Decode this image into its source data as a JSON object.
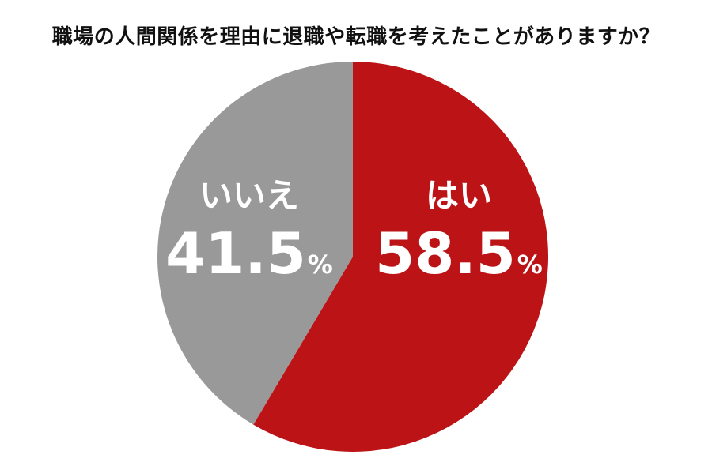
{
  "chart_data": {
    "type": "pie",
    "title": "職場の人間関係を理由に退職や転職を考えたことがありますか？",
    "slices": [
      {
        "label": "はい",
        "value": 58.5,
        "color": "#bb1316"
      },
      {
        "label": "いいえ",
        "value": 41.5,
        "color": "#999999"
      }
    ],
    "unit": "%"
  }
}
